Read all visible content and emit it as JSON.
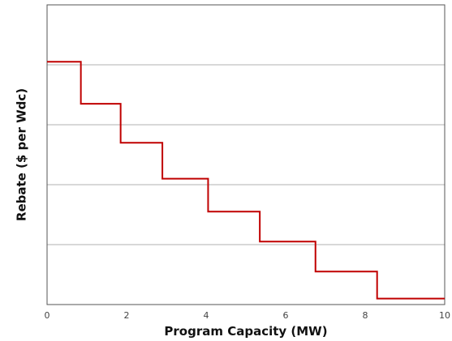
{
  "chart_data": {
    "type": "line",
    "step": true,
    "title": "",
    "xlabel": "Program Capacity (MW)",
    "ylabel": "Rebate ($ per Wdc)",
    "xlim": [
      0,
      10
    ],
    "ylim": [
      0,
      5
    ],
    "x_ticks": [
      "0",
      "2",
      "4",
      "6",
      "8",
      "10"
    ],
    "y_gridlines": [
      1,
      2,
      3,
      4
    ],
    "y_tick_labels_shown": false,
    "grid": "horizontal",
    "legend": "none",
    "series": [
      {
        "steps": [
          {
            "x_start": 0.0,
            "x_end": 0.85,
            "y": 4.05
          },
          {
            "x_start": 0.85,
            "x_end": 1.85,
            "y": 3.35
          },
          {
            "x_start": 1.85,
            "x_end": 2.9,
            "y": 2.7
          },
          {
            "x_start": 2.9,
            "x_end": 4.05,
            "y": 2.1
          },
          {
            "x_start": 4.05,
            "x_end": 5.35,
            "y": 1.55
          },
          {
            "x_start": 5.35,
            "x_end": 6.75,
            "y": 1.05
          },
          {
            "x_start": 6.75,
            "x_end": 8.3,
            "y": 0.55
          },
          {
            "x_start": 8.3,
            "x_end": 10.0,
            "y": 0.1
          }
        ]
      }
    ],
    "colors": {
      "line": "#c00000",
      "grid": "#b0b0b0",
      "frame": "#555555"
    }
  }
}
